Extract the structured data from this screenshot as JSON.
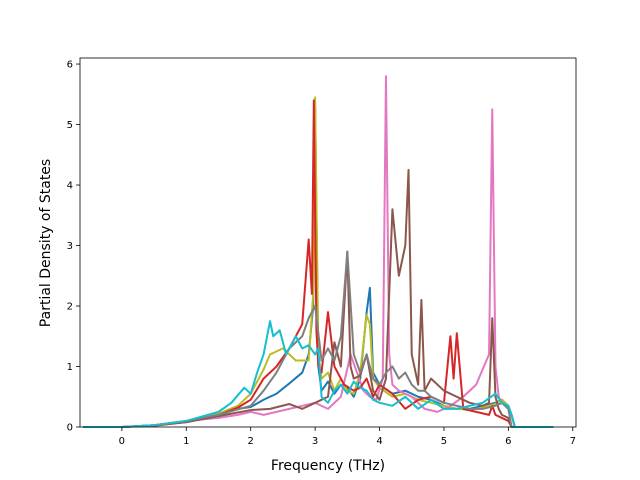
{
  "chart_data": {
    "type": "line",
    "title": "",
    "xlabel": "Frequency (THz)",
    "ylabel": "Partial Density of States",
    "xlim": [
      -0.65,
      7.05
    ],
    "ylim": [
      0,
      6.1
    ],
    "xticks": [
      0,
      1,
      2,
      3,
      4,
      5,
      6,
      7
    ],
    "yticks": [
      0,
      1,
      2,
      3,
      4,
      5,
      6
    ],
    "grid": false,
    "legend": "none",
    "series": [
      {
        "color": "#1f77b4",
        "x": [
          -0.6,
          0,
          0.5,
          1,
          1.5,
          1.8,
          2,
          2.2,
          2.4,
          2.6,
          2.8,
          2.9,
          2.97,
          3.0,
          3.05,
          3.1,
          3.2,
          3.3,
          3.4,
          3.5,
          3.6,
          3.7,
          3.8,
          3.85,
          3.9,
          4.0,
          4.2,
          4.4,
          4.6,
          4.8,
          5.0,
          5.2,
          5.4,
          5.6,
          5.8,
          5.9,
          6.0,
          6.05,
          6.1,
          6.7
        ],
        "y": [
          0,
          0,
          0.03,
          0.1,
          0.2,
          0.3,
          0.33,
          0.45,
          0.55,
          0.72,
          0.9,
          1.2,
          2.0,
          5.3,
          1.0,
          0.6,
          0.75,
          0.55,
          0.7,
          0.65,
          0.5,
          0.8,
          1.9,
          2.3,
          0.9,
          0.7,
          0.55,
          0.6,
          0.5,
          0.45,
          0.35,
          0.3,
          0.3,
          0.35,
          0.4,
          0.45,
          0.35,
          0.2,
          0,
          0
        ]
      },
      {
        "color": "#bcbd22",
        "x": [
          -0.6,
          0,
          0.5,
          1,
          1.5,
          1.8,
          2,
          2.2,
          2.3,
          2.5,
          2.7,
          2.9,
          2.97,
          3.0,
          3.05,
          3.1,
          3.2,
          3.3,
          3.4,
          3.5,
          3.6,
          3.7,
          3.8,
          3.85,
          3.9,
          4.0,
          4.2,
          4.4,
          4.6,
          4.8,
          5.0,
          5.2,
          5.4,
          5.6,
          5.8,
          5.9,
          6.0,
          6.05,
          6.1,
          6.7
        ],
        "y": [
          0,
          0,
          0.03,
          0.1,
          0.22,
          0.35,
          0.55,
          0.95,
          1.2,
          1.3,
          1.1,
          1.1,
          2.2,
          5.45,
          1.2,
          0.8,
          0.9,
          0.6,
          0.8,
          0.6,
          0.55,
          0.9,
          1.85,
          1.7,
          0.8,
          0.65,
          0.5,
          0.55,
          0.45,
          0.4,
          0.35,
          0.3,
          0.28,
          0.32,
          0.38,
          0.45,
          0.35,
          0.2,
          0,
          0
        ]
      },
      {
        "color": "#e377c2",
        "x": [
          -0.6,
          0,
          0.5,
          1,
          1.5,
          1.8,
          2,
          2.2,
          2.4,
          2.6,
          2.8,
          3.0,
          3.2,
          3.4,
          3.55,
          3.65,
          3.75,
          3.85,
          3.95,
          4.05,
          4.1,
          4.15,
          4.2,
          4.3,
          4.5,
          4.7,
          4.9,
          5.1,
          5.3,
          5.5,
          5.7,
          5.75,
          5.8,
          5.85,
          5.9,
          6.0,
          6.05,
          6.1,
          6.7
        ],
        "y": [
          0,
          0,
          0.03,
          0.1,
          0.15,
          0.2,
          0.25,
          0.2,
          0.25,
          0.3,
          0.35,
          0.4,
          0.3,
          0.5,
          1.2,
          0.9,
          0.6,
          0.5,
          0.45,
          0.8,
          5.8,
          1.2,
          0.7,
          0.6,
          0.5,
          0.3,
          0.25,
          0.35,
          0.5,
          0.7,
          1.2,
          5.25,
          1.0,
          0.5,
          0.4,
          0.3,
          0.2,
          0,
          0
        ]
      },
      {
        "color": "#d62728",
        "x": [
          -0.6,
          0,
          0.5,
          1,
          1.5,
          1.8,
          2,
          2.2,
          2.4,
          2.6,
          2.8,
          2.9,
          2.95,
          2.98,
          3.02,
          3.05,
          3.1,
          3.2,
          3.3,
          3.45,
          3.6,
          3.7,
          3.8,
          3.9,
          4.0,
          4.2,
          4.4,
          4.6,
          4.8,
          5.0,
          5.1,
          5.15,
          5.2,
          5.3,
          5.5,
          5.7,
          5.75,
          5.8,
          5.9,
          6.0,
          6.05,
          6.7
        ],
        "y": [
          0,
          0,
          0.02,
          0.08,
          0.2,
          0.32,
          0.45,
          0.8,
          1.0,
          1.3,
          1.7,
          3.1,
          2.2,
          5.4,
          1.6,
          1.0,
          0.9,
          1.9,
          1.0,
          0.7,
          0.6,
          0.65,
          0.8,
          0.5,
          0.7,
          0.55,
          0.3,
          0.45,
          0.5,
          0.4,
          1.5,
          0.8,
          1.55,
          0.3,
          0.25,
          0.2,
          0.35,
          0.2,
          0.15,
          0.1,
          0,
          0
        ]
      },
      {
        "color": "#8c564b",
        "x": [
          -0.6,
          0,
          0.5,
          1,
          1.5,
          2,
          2.3,
          2.6,
          2.8,
          3.0,
          3.2,
          3.3,
          3.4,
          3.5,
          3.55,
          3.6,
          3.7,
          3.8,
          3.9,
          4.0,
          4.1,
          4.2,
          4.3,
          4.4,
          4.45,
          4.5,
          4.6,
          4.65,
          4.7,
          4.8,
          5.0,
          5.2,
          5.4,
          5.6,
          5.7,
          5.75,
          5.8,
          5.85,
          5.9,
          6.0,
          6.05,
          6.7
        ],
        "y": [
          0,
          0,
          0.03,
          0.08,
          0.18,
          0.28,
          0.3,
          0.38,
          0.3,
          0.4,
          0.5,
          1.4,
          1.0,
          2.9,
          1.0,
          0.8,
          0.85,
          1.2,
          0.6,
          0.45,
          0.8,
          3.6,
          2.5,
          3.0,
          4.25,
          1.2,
          0.7,
          2.1,
          0.6,
          0.8,
          0.6,
          0.5,
          0.4,
          0.35,
          0.4,
          1.8,
          0.5,
          0.3,
          0.2,
          0.15,
          0,
          0
        ]
      },
      {
        "color": "#7f7f7f",
        "x": [
          -0.6,
          0,
          0.5,
          1,
          1.5,
          2,
          2.2,
          2.4,
          2.6,
          2.8,
          2.9,
          3.0,
          3.1,
          3.2,
          3.3,
          3.4,
          3.5,
          3.6,
          3.7,
          3.8,
          3.9,
          4.0,
          4.1,
          4.2,
          4.3,
          4.4,
          4.5,
          4.6,
          4.7,
          4.8,
          5.0,
          5.2,
          5.4,
          5.6,
          5.8,
          5.9,
          6.0,
          6.05,
          6.7
        ],
        "y": [
          0,
          0,
          0.03,
          0.1,
          0.2,
          0.35,
          0.6,
          0.9,
          1.3,
          1.5,
          1.8,
          2.0,
          1.1,
          1.3,
          1.1,
          1.5,
          2.9,
          1.2,
          0.9,
          1.2,
          0.8,
          0.7,
          0.9,
          1.0,
          0.8,
          0.9,
          0.7,
          0.6,
          0.6,
          0.5,
          0.4,
          0.35,
          0.3,
          0.3,
          0.35,
          0.4,
          0.3,
          0,
          0
        ]
      },
      {
        "color": "#17becf",
        "x": [
          -0.6,
          0,
          0.5,
          1,
          1.5,
          1.7,
          1.9,
          2.0,
          2.1,
          2.2,
          2.3,
          2.35,
          2.45,
          2.55,
          2.7,
          2.8,
          2.9,
          3.0,
          3.05,
          3.1,
          3.2,
          3.3,
          3.4,
          3.5,
          3.6,
          3.7,
          3.8,
          3.9,
          4.0,
          4.2,
          4.4,
          4.6,
          4.8,
          5.0,
          5.2,
          5.4,
          5.6,
          5.8,
          5.9,
          6.0,
          6.05,
          6.1,
          6.7
        ],
        "y": [
          0,
          0,
          0.03,
          0.1,
          0.25,
          0.4,
          0.65,
          0.55,
          0.9,
          1.2,
          1.75,
          1.5,
          1.6,
          1.2,
          1.5,
          1.3,
          1.35,
          1.2,
          1.3,
          0.5,
          0.4,
          0.6,
          0.7,
          0.55,
          0.75,
          0.65,
          0.6,
          0.45,
          0.4,
          0.35,
          0.5,
          0.3,
          0.45,
          0.3,
          0.3,
          0.35,
          0.4,
          0.55,
          0.4,
          0.35,
          0.2,
          0,
          0
        ]
      }
    ]
  }
}
